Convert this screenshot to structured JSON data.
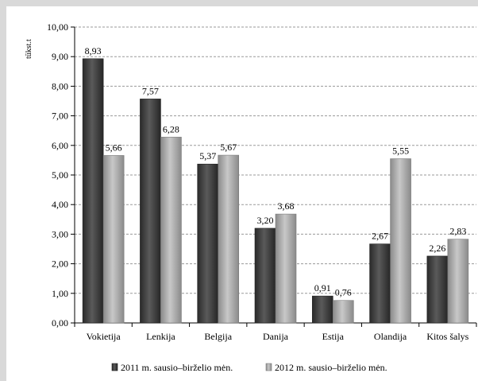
{
  "chart_data": {
    "type": "bar",
    "ylabel": "tūkst.t",
    "ylim": [
      0,
      10
    ],
    "yticks": [
      "0,00",
      "1,00",
      "2,00",
      "3,00",
      "4,00",
      "5,00",
      "6,00",
      "7,00",
      "8,00",
      "9,00",
      "10,00"
    ],
    "grid": true,
    "legend_position": "bottom",
    "categories": [
      "Vokietija",
      "Lenkija",
      "Belgija",
      "Danija",
      "Estija",
      "Olandija",
      "Kitos šalys"
    ],
    "series": [
      {
        "name": "2011 m. sausio–birželio mėn.",
        "color": "#3f3f3f",
        "values": [
          8.93,
          7.57,
          5.37,
          3.2,
          0.91,
          2.67,
          2.26
        ],
        "labels": [
          "8,93",
          "7,57",
          "5,37",
          "3,20",
          "0,91",
          "2,67",
          "2,26"
        ]
      },
      {
        "name": "2012 m. sausio–birželio mėn.",
        "color": "#a6a6a6",
        "values": [
          5.66,
          6.28,
          5.67,
          3.68,
          0.76,
          5.55,
          2.83
        ],
        "labels": [
          "5,66",
          "6,28",
          "5,67",
          "3,68",
          "0,76",
          "5,55",
          "2,83"
        ]
      }
    ]
  }
}
